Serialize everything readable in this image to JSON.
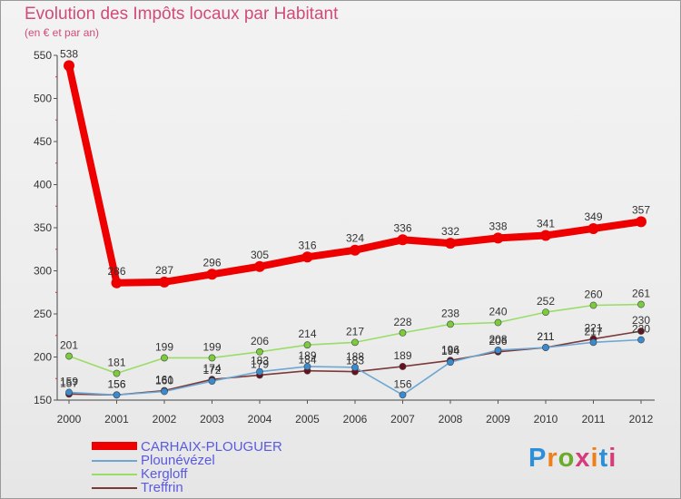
{
  "title": "Evolution des Impôts locaux par Habitant",
  "subtitle": "(en € et par an)",
  "logo": "Proxiti",
  "chart_data": {
    "type": "line",
    "title": "Evolution des Impôts locaux par Habitant",
    "subtitle": "(en € et par an)",
    "xlabel": "",
    "ylabel": "",
    "x": [
      "2000",
      "2001",
      "2002",
      "2003",
      "2004",
      "2005",
      "2006",
      "2007",
      "2008",
      "2009",
      "2010",
      "2011",
      "2012"
    ],
    "ylim": [
      150,
      550
    ],
    "yticks": [
      150,
      200,
      250,
      300,
      350,
      400,
      450,
      500,
      550
    ],
    "grid": false,
    "legend_position": "bottom-left",
    "series": [
      {
        "name": "CARHAIX-PLOUGUER",
        "color": "#ee0000",
        "values": [
          538,
          286,
          287,
          296,
          305,
          316,
          324,
          336,
          332,
          338,
          341,
          349,
          357
        ]
      },
      {
        "name": "Plounévézel",
        "color": "#6da7d4",
        "values": [
          159,
          156,
          160,
          172,
          183,
          189,
          188,
          156,
          194,
          208,
          211,
          217,
          220
        ]
      },
      {
        "name": "Kergloff",
        "color": "#99dd66",
        "values": [
          201,
          181,
          199,
          199,
          206,
          214,
          217,
          228,
          238,
          240,
          252,
          260,
          261
        ]
      },
      {
        "name": "Treffrin",
        "color": "#7a3a3a",
        "values": [
          157,
          156,
          161,
          174,
          179,
          184,
          183,
          189,
          196,
          206,
          211,
          221,
          230
        ]
      }
    ]
  }
}
